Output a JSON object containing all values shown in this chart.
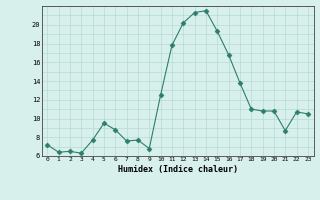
{
  "x": [
    0,
    1,
    2,
    3,
    4,
    5,
    6,
    7,
    8,
    9,
    10,
    11,
    12,
    13,
    14,
    15,
    16,
    17,
    18,
    19,
    20,
    21,
    22,
    23
  ],
  "y": [
    7.2,
    6.4,
    6.5,
    6.3,
    7.7,
    9.5,
    8.8,
    7.6,
    7.7,
    6.8,
    12.5,
    17.8,
    20.2,
    21.3,
    21.5,
    19.3,
    16.8,
    13.8,
    11.0,
    10.8,
    10.8,
    8.7,
    10.7,
    10.5
  ],
  "xlabel": "Humidex (Indice chaleur)",
  "line_color": "#2e7d6e",
  "marker": "D",
  "marker_size": 2.5,
  "bg_color": "#d8f0ec",
  "grid_color": "#b8d8d4",
  "ylim": [
    6,
    22
  ],
  "yticks": [
    6,
    8,
    10,
    12,
    14,
    16,
    18,
    20
  ],
  "xticks": [
    0,
    1,
    2,
    3,
    4,
    5,
    6,
    7,
    8,
    9,
    10,
    11,
    12,
    13,
    14,
    15,
    16,
    17,
    18,
    19,
    20,
    21,
    22,
    23
  ]
}
